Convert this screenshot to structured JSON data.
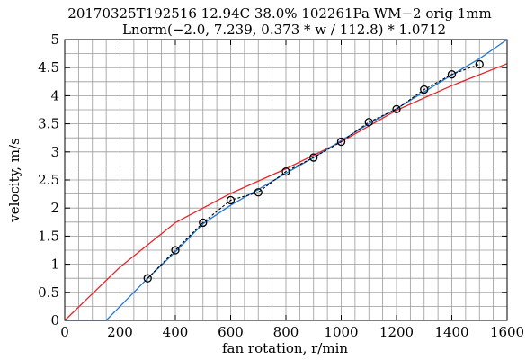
{
  "chart_data": {
    "type": "scatter",
    "title": "20170325T192516 12.94C 38.0% 102261Pa WM−2 orig 1mm",
    "subtitle": "Lnorm(−2.0, 7.239, 0.373 * w / 112.8) * 1.0712",
    "xlabel": "fan rotation, r/min",
    "ylabel": "velocity, m/s",
    "xlim": [
      0,
      1600
    ],
    "ylim": [
      0,
      5
    ],
    "x_ticks": [
      0,
      200,
      400,
      600,
      800,
      1000,
      1200,
      1400,
      1600
    ],
    "x_tick_labels": [
      "0",
      "200",
      "400",
      "600",
      "800",
      "1000",
      "1200",
      "1400",
      "1600"
    ],
    "y_ticks": [
      0,
      0.5,
      1,
      1.5,
      2,
      2.5,
      3,
      3.5,
      4,
      4.5,
      5
    ],
    "y_tick_labels": [
      "0",
      "0.5",
      "1",
      "1.5",
      "2",
      "2.5",
      "3",
      "3.5",
      "4",
      "4.5",
      "5"
    ],
    "grid": true,
    "series": [
      {
        "style": "markers-dashed",
        "color": "#000000",
        "x": [
          300,
          400,
          500,
          600,
          700,
          800,
          900,
          1000,
          1100,
          1200,
          1300,
          1400,
          1500
        ],
        "y": [
          0.75,
          1.25,
          1.74,
          2.14,
          2.28,
          2.65,
          2.9,
          3.18,
          3.53,
          3.76,
          4.11,
          4.38,
          4.56
        ]
      },
      {
        "style": "line",
        "color": "#1f77d4",
        "x": [
          0,
          150,
          300,
          400,
          500,
          600,
          700,
          800,
          900,
          1000,
          1100,
          1200,
          1300,
          1400,
          1500,
          1600
        ],
        "y": [
          0,
          0,
          0.75,
          1.22,
          1.72,
          2.05,
          2.33,
          2.62,
          2.9,
          3.2,
          3.5,
          3.77,
          4.07,
          4.37,
          4.66,
          5.0
        ]
      },
      {
        "style": "line",
        "color": "#e8262a",
        "x": [
          0,
          200,
          400,
          600,
          800,
          1000,
          1200,
          1400,
          1600
        ],
        "y": [
          0,
          0.95,
          1.74,
          2.26,
          2.7,
          3.18,
          3.74,
          4.18,
          4.57
        ]
      }
    ]
  }
}
